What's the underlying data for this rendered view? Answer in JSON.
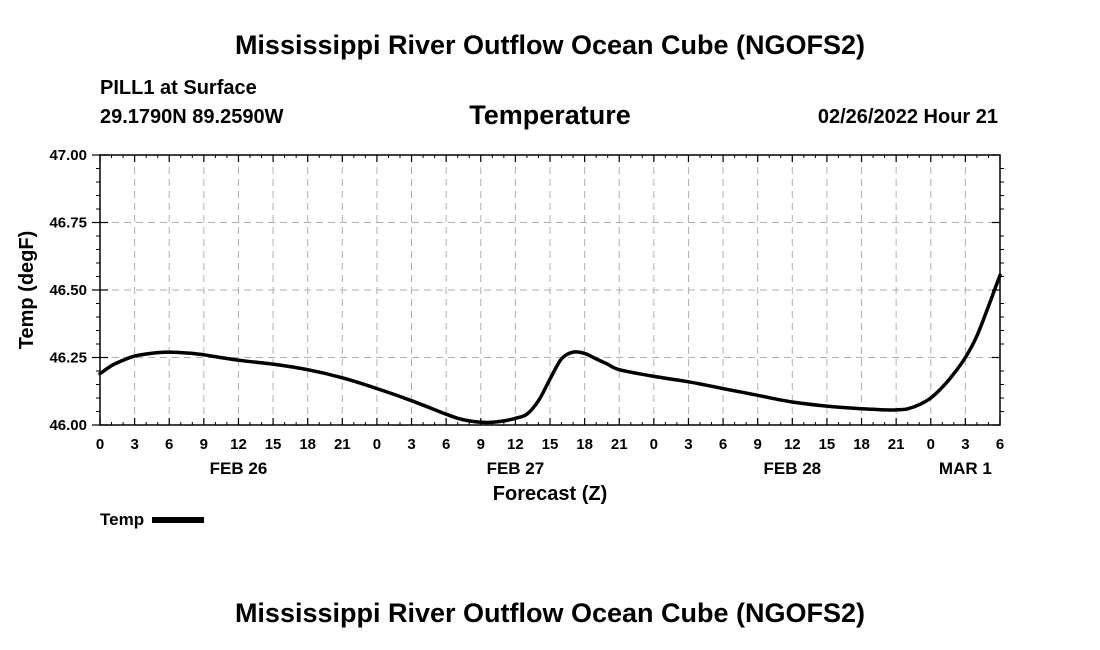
{
  "header": {
    "title": "Mississippi River Outflow Ocean Cube (NGOFS2)",
    "station": "PILL1 at Surface",
    "coords": "29.1790N  89.2590W",
    "chart_title": "Temperature",
    "datetime": "02/26/2022 Hour 21"
  },
  "footer": {
    "title": "Mississippi River Outflow Ocean Cube (NGOFS2)"
  },
  "legend": {
    "label": "Temp"
  },
  "chart_data": {
    "type": "line",
    "title": "Temperature",
    "xlabel": "Forecast (Z)",
    "ylabel": "Temp (degF)",
    "x_range_hours": [
      0,
      78
    ],
    "ylim": [
      46.0,
      47.0
    ],
    "yticks": [
      "46.00",
      "46.25",
      "46.50",
      "46.75",
      "47.00"
    ],
    "xtick_hours": [
      0,
      3,
      6,
      9,
      12,
      15,
      18,
      21,
      24,
      27,
      30,
      33,
      36,
      39,
      42,
      45,
      48,
      51,
      54,
      57,
      60,
      63,
      66,
      69,
      72,
      75,
      78
    ],
    "xtick_labels": [
      "0",
      "3",
      "6",
      "9",
      "12",
      "15",
      "18",
      "21",
      "0",
      "3",
      "6",
      "9",
      "12",
      "15",
      "18",
      "21",
      "0",
      "3",
      "6",
      "9",
      "12",
      "15",
      "18",
      "21",
      "0",
      "3",
      "6"
    ],
    "date_labels": [
      {
        "hour": 12,
        "label": "FEB 26"
      },
      {
        "hour": 36,
        "label": "FEB 27"
      },
      {
        "hour": 60,
        "label": "FEB 28"
      },
      {
        "hour": 75,
        "label": "MAR 1"
      }
    ],
    "grid": true,
    "series": [
      {
        "name": "Temp",
        "color": "#000000",
        "x": [
          0,
          1,
          2,
          3,
          4,
          5,
          6,
          7,
          8,
          9,
          12,
          15,
          18,
          21,
          24,
          27,
          30,
          31,
          32,
          33,
          34,
          35,
          36,
          37,
          38,
          39,
          40,
          41,
          42,
          43,
          44,
          45,
          48,
          51,
          54,
          57,
          60,
          63,
          66,
          67,
          68,
          69,
          70,
          71,
          72,
          73,
          74,
          75,
          76,
          77,
          78
        ],
        "y": [
          46.19,
          46.22,
          46.24,
          46.255,
          46.263,
          46.268,
          46.27,
          46.268,
          46.265,
          46.26,
          46.24,
          46.225,
          46.205,
          46.175,
          46.135,
          46.09,
          46.04,
          46.025,
          46.015,
          46.01,
          46.01,
          46.015,
          46.025,
          46.04,
          46.09,
          46.17,
          46.245,
          46.27,
          46.265,
          46.245,
          46.225,
          46.205,
          46.18,
          46.16,
          46.135,
          46.11,
          46.085,
          46.07,
          46.06,
          46.058,
          46.056,
          46.056,
          46.06,
          46.075,
          46.1,
          46.14,
          46.19,
          46.25,
          46.33,
          46.44,
          46.555
        ]
      }
    ]
  }
}
